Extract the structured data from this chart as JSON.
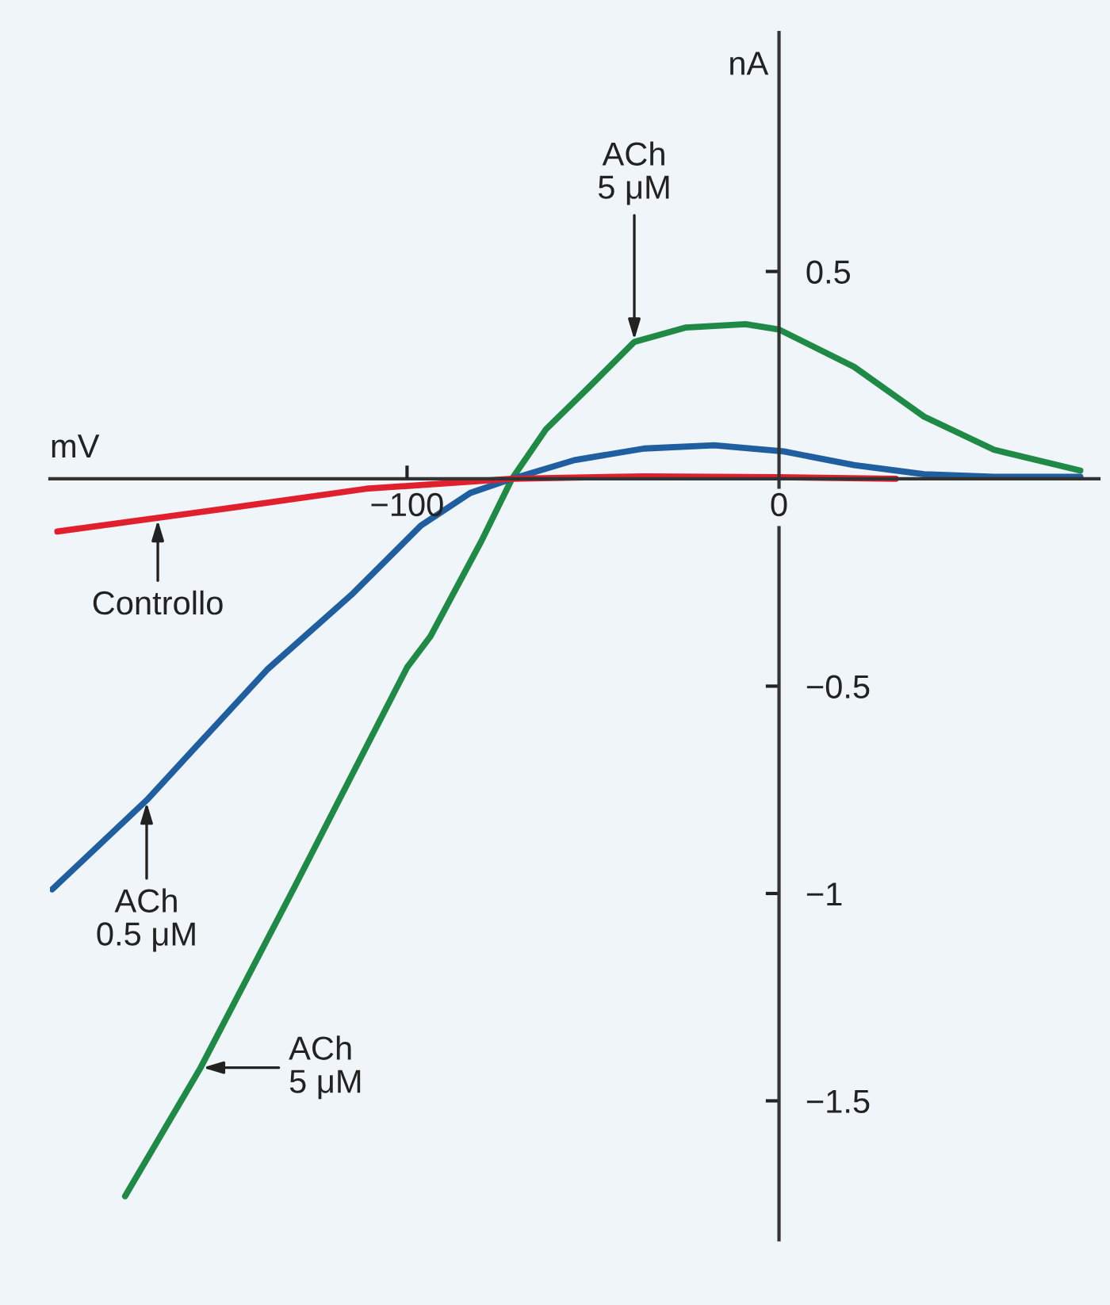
{
  "chart_data": {
    "type": "line",
    "xlabel": "mV",
    "ylabel": "nA",
    "xlim": [
      -196,
      86
    ],
    "ylim": [
      -1.835,
      1.076
    ],
    "xticks": [
      {
        "value": -100,
        "label": "−100"
      },
      0
    ],
    "yticks": [
      0.5,
      {
        "value": -0.5,
        "label": "−0.5"
      },
      {
        "value": -1,
        "label": "−1"
      },
      {
        "value": -1.5,
        "label": "−1.5"
      }
    ],
    "series": [
      {
        "color": "#1f8a45",
        "x": [
          -175.8,
          -155.5,
          -130,
          -100,
          -93.7,
          -80,
          -71.8,
          -62.6,
          -51.2,
          -38.9,
          -25,
          -9,
          0,
          20.2,
          39,
          57.8,
          81
        ],
        "values": [
          -1.73,
          -1.42,
          -0.98,
          -0.455,
          -0.38,
          -0.15,
          0,
          0.12,
          0.22,
          0.33,
          0.365,
          0.373,
          0.36,
          0.27,
          0.15,
          0.07,
          0.02
        ]
      },
      {
        "color": "#1f5fa0",
        "x": [
          -195.4,
          -170,
          -137.6,
          -115,
          -96.3,
          -83,
          -71.8,
          -55,
          -36.3,
          -17.4,
          1.3,
          20.2,
          39,
          57.8,
          81
        ],
        "values": [
          -0.99,
          -0.775,
          -0.46,
          -0.28,
          -0.113,
          -0.034,
          0,
          0.045,
          0.073,
          0.081,
          0.066,
          0.033,
          0.011,
          0.005,
          0.005
        ]
      },
      {
        "color": "#e0202c",
        "x": [
          -194,
          -149,
          -111,
          -71.8,
          -36,
          0,
          31.4
        ],
        "values": [
          -0.127,
          -0.072,
          -0.024,
          0,
          0.006,
          0.004,
          0
        ]
      }
    ],
    "annotations": [
      {
        "text": "ACh\n5 μM",
        "x": -38.9,
        "y": 0.33
      },
      {
        "text": "Controllo",
        "x": -167,
        "y": -0.094
      },
      {
        "text": "ACh\n0.5 μM",
        "x": -170,
        "y": -0.775
      },
      {
        "text": "ACh\n5 μM",
        "x": -155.5,
        "y": -1.42
      }
    ]
  }
}
